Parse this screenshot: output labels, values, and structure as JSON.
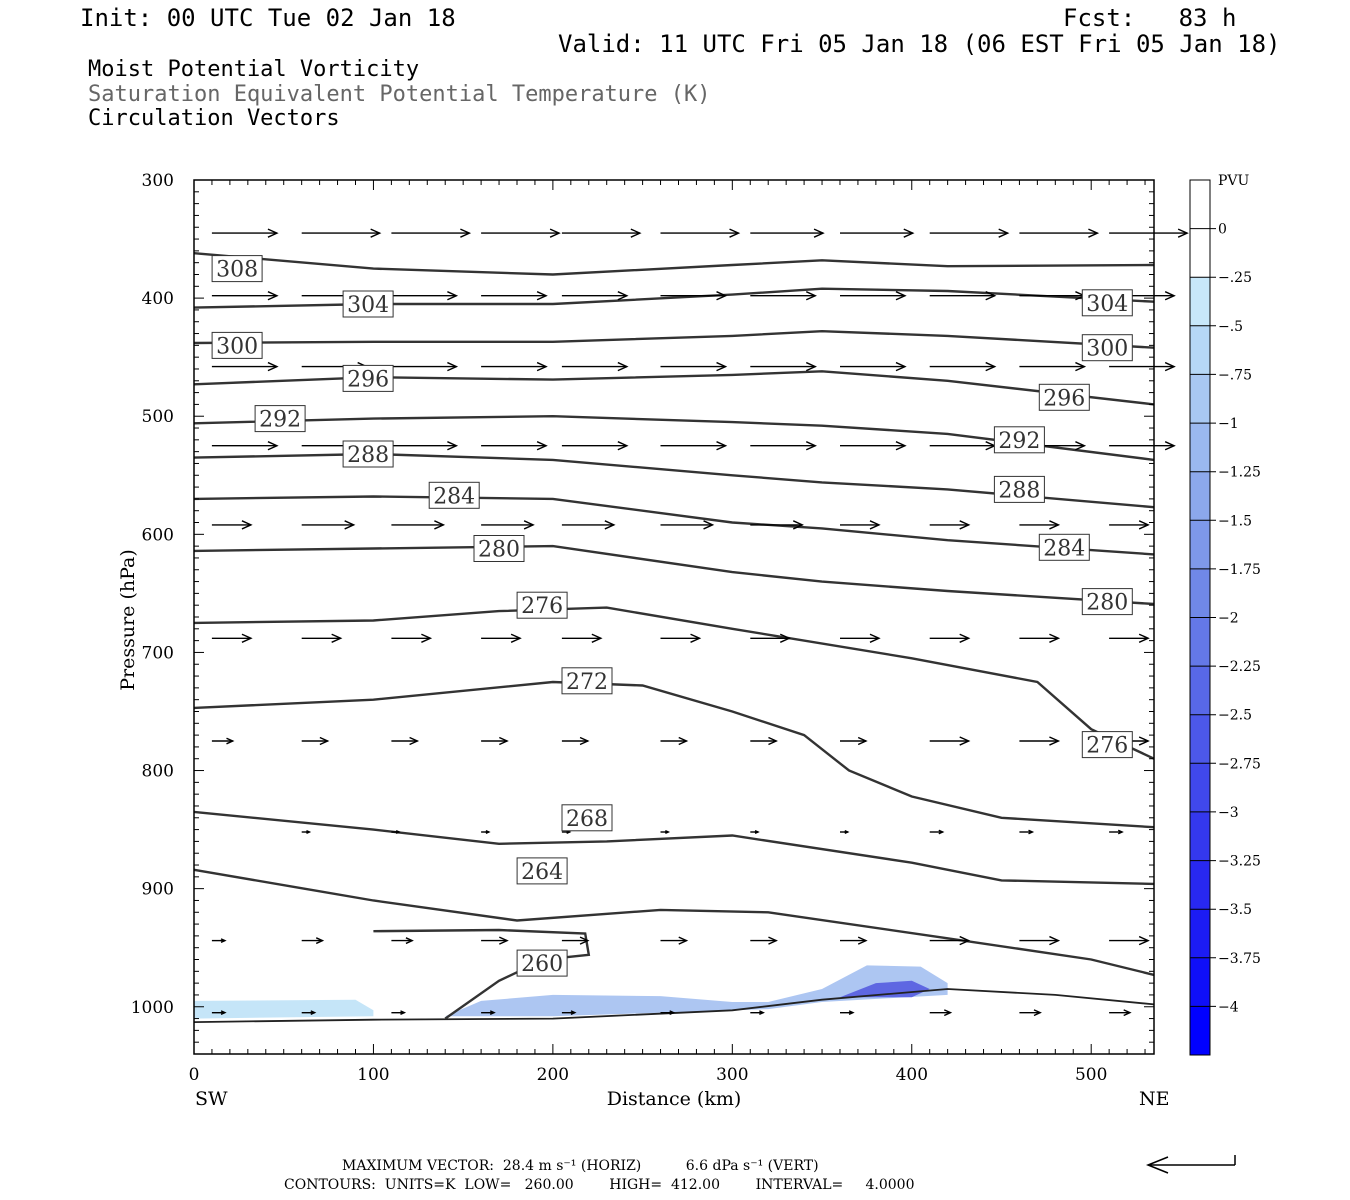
{
  "header": {
    "init": "Init: 00 UTC Tue 02 Jan 18",
    "fcst": "Fcst:   83 h",
    "valid": "Valid: 11 UTC Fri 05 Jan 18 (06 EST Fri 05 Jan 18)",
    "field1": "Moist Potential Vorticity",
    "field2": "Saturation Equivalent Potential Temperature (K)",
    "field3": "Circulation Vectors"
  },
  "footer": {
    "max_vector": "MAXIMUM VECTOR:  28.4 m s⁻¹ (HORIZ)          6.6 dPa s⁻¹ (VERT)",
    "contours": "CONTOURS:  UNITS=K  LOW=   260.00        HIGH=  412.00        INTERVAL=     4.0000"
  },
  "chart_data": {
    "type": "line",
    "xlabel": "Distance (km)",
    "ylabel": "Pressure (hPa)",
    "xlim": [
      0,
      535
    ],
    "ylim": [
      300,
      1040
    ],
    "y_log": false,
    "x_ticks": [
      0,
      100,
      200,
      300,
      400,
      500
    ],
    "y_ticks": [
      300,
      400,
      500,
      600,
      700,
      800,
      900,
      1000
    ],
    "x_end_labels": {
      "left": "SW",
      "right": "NE"
    },
    "colorbar": {
      "title": "PVU",
      "labels": [
        "0",
        "−.25",
        "−.5",
        "−.75",
        "−1",
        "−1.25",
        "−1.5",
        "−1.75",
        "−2",
        "−2.25",
        "−2.5",
        "−2.75",
        "−3",
        "−3.25",
        "−3.5",
        "−3.75",
        "−4"
      ],
      "colors": [
        "#ffffff",
        "#ffffff",
        "#c8e8fa",
        "#b6d8f6",
        "#a8c8f2",
        "#9ab8ef",
        "#8ca8ec",
        "#7e98ea",
        "#7088e8",
        "#6478e8",
        "#5868e8",
        "#4c58ea",
        "#4048ec",
        "#3438ee",
        "#2828f0",
        "#1c1cf4",
        "#0f0ff8",
        "#0000ff"
      ]
    },
    "theta_es_contours": [
      {
        "level": 308,
        "label_at": [
          24,
          375
        ],
        "points": [
          [
            0,
            362
          ],
          [
            100,
            375
          ],
          [
            200,
            380
          ],
          [
            300,
            372
          ],
          [
            350,
            368
          ],
          [
            420,
            373
          ],
          [
            535,
            372
          ]
        ]
      },
      {
        "level": 304,
        "label_at": [
          97,
          405
        ],
        "label_at2": [
          509,
          404
        ],
        "points": [
          [
            0,
            408
          ],
          [
            100,
            405
          ],
          [
            200,
            405
          ],
          [
            300,
            397
          ],
          [
            350,
            392
          ],
          [
            420,
            394
          ],
          [
            535,
            403
          ]
        ]
      },
      {
        "level": 300,
        "label_at": [
          24,
          440
        ],
        "label_at2": [
          509,
          442
        ],
        "points": [
          [
            0,
            438
          ],
          [
            100,
            437
          ],
          [
            200,
            437
          ],
          [
            300,
            432
          ],
          [
            350,
            428
          ],
          [
            420,
            432
          ],
          [
            535,
            442
          ]
        ]
      },
      {
        "level": 296,
        "label_at": [
          97,
          468
        ],
        "label_at2": [
          485,
          484
        ],
        "points": [
          [
            0,
            473
          ],
          [
            100,
            467
          ],
          [
            200,
            469
          ],
          [
            300,
            465
          ],
          [
            350,
            462
          ],
          [
            420,
            470
          ],
          [
            535,
            490
          ]
        ]
      },
      {
        "level": 292,
        "label_at": [
          48,
          502
        ],
        "label_at2": [
          460,
          520
        ],
        "points": [
          [
            0,
            506
          ],
          [
            100,
            502
          ],
          [
            200,
            500
          ],
          [
            300,
            505
          ],
          [
            350,
            508
          ],
          [
            420,
            515
          ],
          [
            535,
            537
          ]
        ]
      },
      {
        "level": 288,
        "label_at": [
          97,
          532
        ],
        "label_at2": [
          460,
          562
        ],
        "points": [
          [
            0,
            535
          ],
          [
            100,
            532
          ],
          [
            200,
            537
          ],
          [
            300,
            550
          ],
          [
            350,
            556
          ],
          [
            420,
            562
          ],
          [
            535,
            577
          ]
        ]
      },
      {
        "level": 284,
        "label_at": [
          145,
          567
        ],
        "label_at2": [
          485,
          611
        ],
        "points": [
          [
            0,
            570
          ],
          [
            100,
            568
          ],
          [
            200,
            570
          ],
          [
            300,
            590
          ],
          [
            350,
            595
          ],
          [
            420,
            605
          ],
          [
            535,
            617
          ]
        ]
      },
      {
        "level": 280,
        "label_at": [
          170,
          612
        ],
        "label_at2": [
          509,
          657
        ],
        "points": [
          [
            0,
            614
          ],
          [
            100,
            612
          ],
          [
            200,
            610
          ],
          [
            300,
            632
          ],
          [
            350,
            640
          ],
          [
            420,
            648
          ],
          [
            535,
            659
          ]
        ]
      },
      {
        "level": 276,
        "label_at": [
          194,
          660
        ],
        "label_at2": [
          509,
          778
        ],
        "points": [
          [
            0,
            675
          ],
          [
            100,
            673
          ],
          [
            170,
            665
          ],
          [
            230,
            662
          ],
          [
            300,
            680
          ],
          [
            400,
            705
          ],
          [
            470,
            725
          ],
          [
            500,
            765
          ],
          [
            535,
            790
          ]
        ]
      },
      {
        "level": 272,
        "label_at": [
          219,
          724
        ],
        "points": [
          [
            0,
            747
          ],
          [
            100,
            740
          ],
          [
            200,
            725
          ],
          [
            250,
            728
          ],
          [
            300,
            750
          ],
          [
            340,
            770
          ],
          [
            365,
            800
          ],
          [
            400,
            822
          ],
          [
            450,
            840
          ],
          [
            535,
            848
          ]
        ]
      },
      {
        "level": 268,
        "label_at": [
          219,
          840
        ],
        "points": [
          [
            0,
            835
          ],
          [
            100,
            850
          ],
          [
            170,
            862
          ],
          [
            230,
            860
          ],
          [
            300,
            855
          ],
          [
            400,
            878
          ],
          [
            450,
            893
          ],
          [
            535,
            896
          ]
        ]
      },
      {
        "level": 264,
        "label_at": [
          194,
          885
        ],
        "points": [
          [
            0,
            884
          ],
          [
            100,
            910
          ],
          [
            180,
            927
          ],
          [
            260,
            918
          ],
          [
            320,
            920
          ],
          [
            420,
            942
          ],
          [
            500,
            960
          ],
          [
            535,
            973
          ]
        ]
      },
      {
        "level": 260,
        "label_at": [
          194,
          963
        ],
        "points": [
          [
            140,
            1010
          ],
          [
            170,
            978
          ],
          [
            195,
            960
          ],
          [
            220,
            956
          ],
          [
            218,
            938
          ],
          [
            170,
            935
          ],
          [
            100,
            936
          ]
        ]
      }
    ],
    "ground_pressure": [
      [
        0,
        1013
      ],
      [
        100,
        1011
      ],
      [
        200,
        1010
      ],
      [
        300,
        1003
      ],
      [
        350,
        994
      ],
      [
        420,
        985
      ],
      [
        480,
        990
      ],
      [
        535,
        998
      ]
    ],
    "mpv_shading": [
      {
        "pvu_min": -0.25,
        "pvu_max": -0.5,
        "polygon": [
          [
            0,
            995
          ],
          [
            90,
            994
          ],
          [
            100,
            1003
          ],
          [
            100,
            1008
          ],
          [
            0,
            1010
          ]
        ]
      },
      {
        "pvu_min": -0.25,
        "pvu_max": -1.0,
        "polygon": [
          [
            140,
            1008
          ],
          [
            160,
            995
          ],
          [
            200,
            990
          ],
          [
            260,
            991
          ],
          [
            300,
            996
          ],
          [
            320,
            996
          ],
          [
            350,
            985
          ],
          [
            375,
            965
          ],
          [
            405,
            966
          ],
          [
            420,
            980
          ],
          [
            420,
            990
          ],
          [
            350,
            996
          ],
          [
            320,
            1002
          ],
          [
            260,
            1005
          ],
          [
            200,
            1008
          ]
        ]
      },
      {
        "pvu_min": -1.0,
        "pvu_max": -2.5,
        "polygon": [
          [
            360,
            992
          ],
          [
            380,
            980
          ],
          [
            400,
            978
          ],
          [
            410,
            985
          ],
          [
            400,
            992
          ]
        ]
      }
    ],
    "vector_rows": [
      {
        "p": 345,
        "u": [
          [
            10,
            25
          ],
          [
            60,
            30
          ],
          [
            110,
            30
          ],
          [
            160,
            30
          ],
          [
            205,
            30
          ],
          [
            260,
            30
          ],
          [
            310,
            28
          ],
          [
            360,
            28
          ],
          [
            410,
            30
          ],
          [
            460,
            30
          ],
          [
            510,
            30
          ]
        ]
      },
      {
        "p": 398,
        "u": [
          [
            10,
            25
          ],
          [
            60,
            25
          ],
          [
            110,
            25
          ],
          [
            160,
            25
          ],
          [
            205,
            25
          ],
          [
            260,
            25
          ],
          [
            310,
            25
          ],
          [
            360,
            25
          ],
          [
            410,
            25
          ],
          [
            460,
            25
          ],
          [
            510,
            25
          ]
        ]
      },
      {
        "p": 458,
        "u": [
          [
            10,
            25
          ],
          [
            60,
            25
          ],
          [
            110,
            25
          ],
          [
            160,
            25
          ],
          [
            205,
            25
          ],
          [
            260,
            25
          ],
          [
            310,
            25
          ],
          [
            360,
            25
          ],
          [
            410,
            25
          ],
          [
            460,
            25
          ],
          [
            510,
            25
          ]
        ]
      },
      {
        "p": 525,
        "u": [
          [
            10,
            25
          ],
          [
            60,
            25
          ],
          [
            110,
            25
          ],
          [
            160,
            25
          ],
          [
            205,
            25
          ],
          [
            260,
            25
          ],
          [
            310,
            25
          ],
          [
            360,
            25
          ],
          [
            410,
            25
          ],
          [
            460,
            25
          ],
          [
            510,
            25
          ]
        ]
      },
      {
        "p": 592,
        "u": [
          [
            10,
            15
          ],
          [
            60,
            20
          ],
          [
            110,
            20
          ],
          [
            160,
            20
          ],
          [
            205,
            20
          ],
          [
            260,
            20
          ],
          [
            310,
            20
          ],
          [
            360,
            15
          ],
          [
            410,
            15
          ],
          [
            460,
            15
          ],
          [
            510,
            15
          ]
        ]
      },
      {
        "p": 688,
        "u": [
          [
            10,
            15
          ],
          [
            60,
            15
          ],
          [
            110,
            15
          ],
          [
            160,
            15
          ],
          [
            205,
            15
          ],
          [
            260,
            15
          ],
          [
            310,
            15
          ],
          [
            360,
            15
          ],
          [
            410,
            15
          ],
          [
            460,
            15
          ],
          [
            510,
            15
          ]
        ]
      },
      {
        "p": 775,
        "u": [
          [
            10,
            8
          ],
          [
            60,
            10
          ],
          [
            110,
            10
          ],
          [
            160,
            10
          ],
          [
            205,
            10
          ],
          [
            260,
            10
          ],
          [
            310,
            10
          ],
          [
            360,
            10
          ],
          [
            410,
            15
          ],
          [
            460,
            15
          ],
          [
            510,
            15
          ]
        ]
      },
      {
        "p": 852,
        "u": [
          [
            60,
            3
          ],
          [
            110,
            3
          ],
          [
            160,
            3
          ],
          [
            205,
            3
          ],
          [
            260,
            3
          ],
          [
            310,
            3
          ],
          [
            360,
            3
          ],
          [
            410,
            5
          ],
          [
            460,
            5
          ],
          [
            510,
            5
          ]
        ]
      },
      {
        "p": 944,
        "u": [
          [
            10,
            5
          ],
          [
            60,
            8
          ],
          [
            110,
            8
          ],
          [
            160,
            10
          ],
          [
            205,
            10
          ],
          [
            260,
            10
          ],
          [
            310,
            10
          ],
          [
            360,
            10
          ],
          [
            410,
            15
          ],
          [
            460,
            15
          ],
          [
            510,
            15
          ]
        ]
      },
      {
        "p": 1005,
        "u": [
          [
            10,
            5
          ],
          [
            60,
            5
          ],
          [
            110,
            5
          ],
          [
            160,
            5
          ],
          [
            205,
            5
          ],
          [
            260,
            5
          ],
          [
            310,
            5
          ],
          [
            360,
            5
          ],
          [
            410,
            8
          ],
          [
            460,
            8
          ],
          [
            510,
            8
          ]
        ]
      }
    ]
  }
}
